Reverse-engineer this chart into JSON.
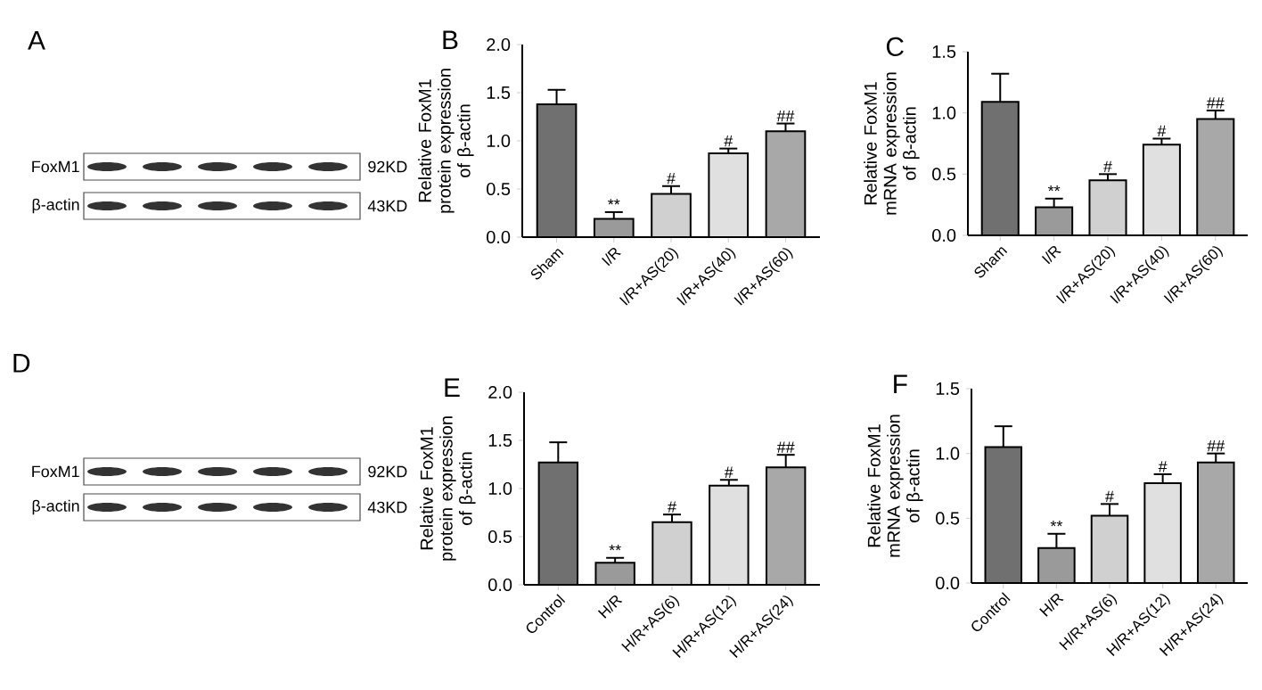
{
  "chart_data": [
    {
      "type": "other",
      "title": "A",
      "annotations": [
        "FoxM1",
        "β-actin",
        "92KD",
        "43KD"
      ]
    },
    {
      "type": "bar",
      "title": "B",
      "ylabel": "Relative FoxM1 protein expression of β-actin",
      "categories": [
        "Sham",
        "I/R",
        "I/R+AS(20)",
        "I/R+AS(40)",
        "I/R+AS(60)"
      ],
      "values": [
        1.38,
        0.19,
        0.45,
        0.87,
        1.1
      ],
      "errors": [
        0.15,
        0.07,
        0.08,
        0.05,
        0.08
      ],
      "value_labels": [
        null,
        "**",
        "#",
        "#",
        "##"
      ],
      "colors": [
        "#707070",
        "#9a9a9a",
        "#d0d0d0",
        "#e0e0e0",
        "#a8a8a8"
      ],
      "ylim": [
        0,
        2
      ],
      "yticks": [
        {
          "value": 0,
          "label": "0.0"
        },
        {
          "value": 0.5,
          "label": "0.5"
        },
        {
          "value": 1,
          "label": "1.0"
        },
        {
          "value": 1.5,
          "label": "1.5"
        },
        {
          "value": 2,
          "label": "2.0"
        }
      ]
    },
    {
      "type": "bar",
      "title": "C",
      "ylabel": "Relative  FoxM1 mRNA expression of β-actin",
      "categories": [
        "Sham",
        "I/R",
        "I/R+AS(20)",
        "I/R+AS(40)",
        "I/R+AS(60)"
      ],
      "values": [
        1.09,
        0.23,
        0.45,
        0.74,
        0.95
      ],
      "errors": [
        0.23,
        0.07,
        0.05,
        0.05,
        0.07
      ],
      "value_labels": [
        null,
        "**",
        "#",
        "#",
        "##"
      ],
      "colors": [
        "#707070",
        "#9a9a9a",
        "#d0d0d0",
        "#e0e0e0",
        "#a8a8a8"
      ],
      "ylim": [
        0,
        1.5
      ],
      "yticks": [
        {
          "value": 0,
          "label": "0.0"
        },
        {
          "value": 0.5,
          "label": "0.5"
        },
        {
          "value": 1,
          "label": "1.0"
        },
        {
          "value": 1.5,
          "label": "1.5"
        }
      ]
    },
    {
      "type": "other",
      "title": "D",
      "annotations": [
        "FoxM1",
        "β-actin",
        "92KD",
        "43KD"
      ]
    },
    {
      "type": "bar",
      "title": "E",
      "ylabel": "Relative FoxM1 protein expression of β-actin",
      "categories": [
        "Control",
        "H/R",
        "H/R+AS(6)",
        "H/R+AS(12)",
        "H/R+AS(24)"
      ],
      "values": [
        1.27,
        0.23,
        0.65,
        1.03,
        1.22
      ],
      "errors": [
        0.21,
        0.05,
        0.08,
        0.06,
        0.13
      ],
      "value_labels": [
        null,
        "**",
        "#",
        "#",
        "##"
      ],
      "colors": [
        "#707070",
        "#9a9a9a",
        "#d0d0d0",
        "#e0e0e0",
        "#a8a8a8"
      ],
      "ylim": [
        0,
        2
      ],
      "yticks": [
        {
          "value": 0,
          "label": "0.0"
        },
        {
          "value": 0.5,
          "label": "0.5"
        },
        {
          "value": 1,
          "label": "1.0"
        },
        {
          "value": 1.5,
          "label": "1.5"
        },
        {
          "value": 2,
          "label": "2.0"
        }
      ]
    },
    {
      "type": "bar",
      "title": "F",
      "ylabel": "Relative  FoxM1 mRNA expression of β-actin",
      "categories": [
        "Control",
        "H/R",
        "H/R+AS(6)",
        "H/R+AS(12)",
        "H/R+AS(24)"
      ],
      "values": [
        1.05,
        0.27,
        0.52,
        0.77,
        0.93
      ],
      "errors": [
        0.16,
        0.11,
        0.09,
        0.07,
        0.07
      ],
      "value_labels": [
        null,
        "**",
        "#",
        "#",
        "##"
      ],
      "colors": [
        "#707070",
        "#9a9a9a",
        "#d0d0d0",
        "#e0e0e0",
        "#a8a8a8"
      ],
      "ylim": [
        0,
        1.5
      ],
      "yticks": [
        {
          "value": 0,
          "label": "0.0"
        },
        {
          "value": 0.5,
          "label": "0.5"
        },
        {
          "value": 1,
          "label": "1.0"
        },
        {
          "value": 1.5,
          "label": "1.5"
        }
      ]
    }
  ]
}
